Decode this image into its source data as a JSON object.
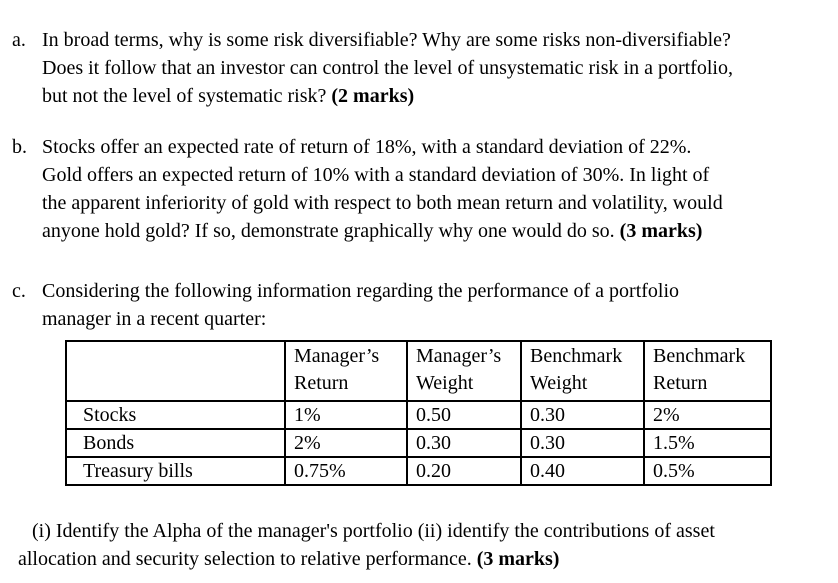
{
  "colors": {
    "background": "#ffffff",
    "text": "#000000",
    "table_border": "#000000"
  },
  "questions": [
    {
      "label": "a.",
      "lines": [
        "In broad terms, why is some risk diversifiable? Why are some risks non-diversifiable?",
        "Does it follow that an investor can control the level of unsystematic risk in a portfolio,",
        "but not the level of systematic risk? "
      ],
      "marks": "(2 marks)"
    },
    {
      "label": "b.",
      "lines": [
        "Stocks offer an expected rate of return of 18%, with a standard deviation of 22%.",
        "Gold offers an expected return of 10% with a standard deviation of 30%. In light of",
        "the apparent inferiority of gold with respect to both mean return and volatility, would",
        "anyone hold gold? If so, demonstrate graphically why one would do so. "
      ],
      "marks": "(3 marks)"
    },
    {
      "label": "c.",
      "lines": [
        "Considering the following information regarding the performance of a portfolio",
        "manager in a recent quarter:"
      ],
      "marks": ""
    }
  ],
  "table": {
    "headers": [
      "",
      "Manager’s Return",
      "Manager’s Weight",
      "Benchmark Weight",
      "Benchmark Return"
    ],
    "rows": [
      {
        "cells": [
          "Stocks",
          "1%",
          "0.50",
          "0.30",
          "2%"
        ]
      },
      {
        "cells": [
          "Bonds",
          "2%",
          "0.30",
          "0.30",
          "1.5%"
        ]
      },
      {
        "cells": [
          "Treasury bills",
          "0.75%",
          "0.20",
          "0.40",
          "0.5%"
        ]
      }
    ]
  },
  "footer": {
    "lines": [
      "(i) Identify the Alpha of the manager's portfolio (ii) identify the contributions of asset",
      "allocation and security selection to relative performance. "
    ],
    "marks": "(3 marks)"
  }
}
